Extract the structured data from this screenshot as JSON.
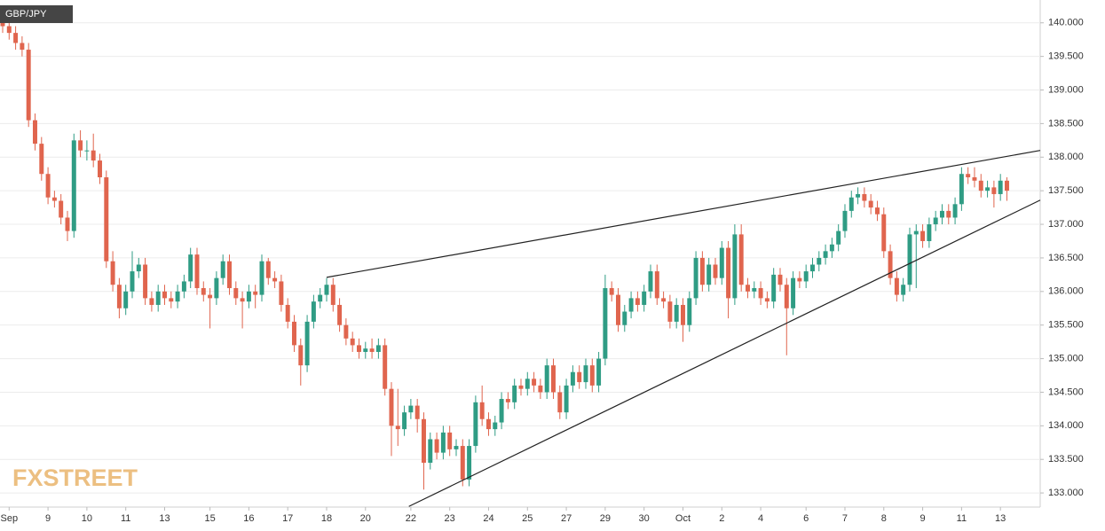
{
  "chart_data": {
    "type": "candlestick",
    "title": "GBP/JPY",
    "watermark": "FXSTREET",
    "up_color": "#2f9c84",
    "down_color": "#e0654e",
    "grid": true,
    "xlim": [
      -0.41,
      160.14
    ],
    "ylim": [
      132.79,
      140.34
    ],
    "yticks": [
      {
        "value": 133,
        "label": "133.000"
      },
      {
        "value": 133.5,
        "label": "133.500"
      },
      {
        "value": 134,
        "label": "134.000"
      },
      {
        "value": 134.5,
        "label": "134.500"
      },
      {
        "value": 135,
        "label": "135.000"
      },
      {
        "value": 135.5,
        "label": "135.500"
      },
      {
        "value": 136,
        "label": "136.000"
      },
      {
        "value": 136.5,
        "label": "136.500"
      },
      {
        "value": 137,
        "label": "137.000"
      },
      {
        "value": 137.5,
        "label": "137.500"
      },
      {
        "value": 138,
        "label": "138.000"
      },
      {
        "value": 138.5,
        "label": "138.500"
      },
      {
        "value": 139,
        "label": "139.000"
      },
      {
        "value": 139.5,
        "label": "139.500"
      },
      {
        "value": 140,
        "label": "140.000"
      }
    ],
    "categories": [
      null,
      "Sep",
      null,
      null,
      null,
      null,
      null,
      "9",
      null,
      null,
      null,
      null,
      null,
      "10",
      null,
      null,
      null,
      null,
      null,
      "11",
      null,
      null,
      null,
      null,
      null,
      "13",
      null,
      null,
      null,
      null,
      null,
      null,
      "15",
      null,
      null,
      null,
      null,
      null,
      "16",
      null,
      null,
      null,
      null,
      null,
      "17",
      null,
      null,
      null,
      null,
      null,
      "18",
      null,
      null,
      null,
      null,
      null,
      "20",
      null,
      null,
      null,
      null,
      null,
      null,
      "22",
      null,
      null,
      null,
      null,
      null,
      "23",
      null,
      null,
      null,
      null,
      null,
      "24",
      null,
      null,
      null,
      null,
      null,
      "25",
      null,
      null,
      null,
      null,
      null,
      "27",
      null,
      null,
      null,
      null,
      null,
      "29",
      null,
      null,
      null,
      null,
      null,
      "30",
      null,
      null,
      null,
      null,
      null,
      "Oct",
      null,
      null,
      null,
      null,
      null,
      "2",
      null,
      null,
      null,
      null,
      null,
      "4",
      null,
      null,
      null,
      null,
      null,
      null,
      "6",
      null,
      null,
      null,
      null,
      null,
      "7",
      null,
      null,
      null,
      null,
      null,
      "8",
      null,
      null,
      null,
      null,
      null,
      "9",
      null,
      null,
      null,
      null,
      null,
      "11",
      null,
      null,
      null,
      null,
      null,
      "13",
      null
    ],
    "open": [
      140.05,
      139.95,
      139.85,
      139.7,
      139.6,
      138.55,
      138.2,
      137.75,
      137.4,
      137.35,
      137.1,
      136.9,
      138.25,
      138.1,
      138.1,
      137.95,
      137.7,
      136.45,
      136.1,
      135.75,
      136.0,
      136.3,
      136.4,
      135.9,
      135.8,
      136.0,
      135.9,
      135.85,
      136.0,
      136.15,
      136.55,
      136.05,
      135.95,
      135.9,
      136.2,
      136.45,
      136.05,
      135.9,
      135.85,
      136.0,
      135.95,
      136.45,
      136.2,
      136.15,
      135.8,
      135.55,
      135.2,
      134.9,
      135.55,
      135.85,
      135.95,
      136.1,
      135.8,
      135.5,
      135.3,
      135.2,
      135.1,
      135.15,
      135.1,
      135.2,
      134.55,
      134.0,
      133.95,
      134.2,
      134.3,
      134.1,
      133.45,
      133.8,
      133.6,
      133.9,
      133.65,
      133.7,
      133.2,
      133.7,
      134.35,
      134.1,
      133.95,
      134.05,
      134.4,
      134.35,
      134.6,
      134.55,
      134.7,
      134.6,
      134.5,
      134.9,
      134.5,
      134.2,
      134.6,
      134.8,
      134.65,
      134.9,
      134.6,
      135.0,
      136.05,
      135.95,
      135.5,
      135.7,
      135.9,
      135.8,
      136.0,
      136.3,
      135.9,
      135.85,
      135.55,
      135.8,
      135.5,
      135.9,
      136.5,
      136.1,
      136.4,
      136.2,
      136.65,
      135.9,
      136.85,
      136.1,
      136.0,
      136.05,
      135.9,
      135.85,
      136.25,
      136.1,
      135.75,
      136.2,
      136.15,
      136.3,
      136.4,
      136.5,
      136.6,
      136.7,
      136.9,
      137.2,
      137.4,
      137.45,
      137.35,
      137.25,
      137.15,
      136.6,
      136.2,
      135.95,
      136.1,
      136.85,
      136.9,
      136.75,
      137.0,
      137.1,
      137.2,
      137.1,
      137.3,
      137.75,
      137.7,
      137.65,
      137.5,
      137.55,
      137.45,
      137.65
    ],
    "high": [
      140.15,
      140.05,
      139.95,
      139.8,
      139.7,
      138.65,
      138.3,
      137.85,
      137.5,
      137.45,
      137.2,
      138.35,
      138.4,
      138.25,
      138.35,
      138.05,
      137.8,
      136.6,
      136.2,
      136.1,
      136.6,
      136.5,
      136.5,
      136.0,
      136.1,
      136.1,
      136.0,
      136.1,
      136.25,
      136.65,
      136.65,
      136.15,
      136.05,
      136.3,
      136.55,
      136.55,
      136.15,
      136.0,
      136.1,
      136.1,
      136.55,
      136.5,
      136.3,
      136.25,
      135.9,
      135.65,
      135.3,
      135.65,
      135.95,
      136.05,
      136.2,
      136.2,
      135.9,
      135.6,
      135.4,
      135.3,
      135.25,
      135.3,
      135.3,
      135.3,
      134.65,
      134.55,
      134.3,
      134.4,
      134.4,
      134.2,
      133.9,
      133.9,
      134.0,
      134.0,
      133.8,
      133.8,
      133.8,
      134.45,
      134.6,
      134.2,
      134.15,
      134.5,
      134.5,
      134.7,
      134.7,
      134.8,
      134.8,
      134.7,
      135.0,
      135.0,
      134.6,
      134.7,
      134.9,
      134.9,
      135.0,
      135.0,
      135.1,
      136.25,
      136.15,
      136.05,
      135.8,
      136.0,
      136.0,
      136.1,
      136.4,
      136.4,
      136.0,
      135.95,
      135.9,
      135.9,
      136.0,
      136.6,
      136.6,
      136.5,
      136.5,
      136.75,
      136.75,
      137.0,
      137.0,
      136.2,
      136.15,
      136.15,
      136.0,
      136.35,
      136.35,
      136.2,
      136.3,
      136.3,
      136.4,
      136.5,
      136.6,
      136.7,
      136.8,
      137.0,
      137.3,
      137.5,
      137.55,
      137.55,
      137.45,
      137.35,
      137.25,
      136.7,
      136.3,
      136.2,
      136.95,
      137.0,
      137.0,
      137.1,
      137.2,
      137.3,
      137.3,
      137.4,
      137.85,
      137.85,
      137.85,
      137.75,
      137.65,
      137.65,
      137.75,
      137.7
    ],
    "low": [
      139.85,
      139.75,
      139.6,
      139.5,
      138.45,
      138.1,
      137.65,
      137.3,
      137.25,
      137.0,
      136.75,
      136.8,
      138.0,
      137.95,
      137.85,
      137.6,
      136.35,
      136.0,
      135.6,
      135.65,
      135.9,
      136.2,
      135.8,
      135.7,
      135.7,
      135.8,
      135.75,
      135.75,
      135.9,
      136.05,
      135.95,
      135.85,
      135.45,
      135.8,
      136.1,
      135.95,
      135.8,
      135.45,
      135.75,
      135.75,
      135.85,
      136.1,
      136.05,
      135.7,
      135.45,
      135.1,
      134.6,
      134.8,
      135.45,
      135.75,
      135.85,
      135.7,
      135.4,
      135.2,
      135.1,
      135.0,
      135.0,
      135.0,
      135.0,
      134.45,
      133.55,
      133.7,
      133.85,
      134.1,
      133.9,
      133.05,
      133.35,
      133.5,
      133.5,
      133.55,
      133.55,
      133.1,
      133.1,
      133.6,
      134.0,
      133.85,
      133.85,
      133.95,
      134.25,
      134.25,
      134.45,
      134.45,
      134.5,
      134.4,
      134.4,
      134.4,
      134.1,
      134.1,
      134.5,
      134.55,
      134.55,
      134.5,
      134.5,
      134.9,
      135.85,
      135.4,
      135.4,
      135.6,
      135.7,
      135.7,
      135.9,
      135.8,
      135.75,
      135.45,
      135.45,
      135.25,
      135.4,
      135.8,
      136.0,
      136.0,
      136.1,
      136.1,
      135.6,
      135.8,
      136.0,
      135.9,
      135.9,
      135.8,
      135.75,
      135.75,
      136.0,
      135.05,
      135.65,
      136.05,
      136.05,
      136.2,
      136.3,
      136.4,
      136.5,
      136.6,
      136.8,
      137.1,
      137.3,
      137.25,
      137.15,
      137.05,
      136.5,
      136.1,
      135.85,
      135.85,
      136.0,
      136.05,
      136.65,
      136.65,
      136.9,
      137.0,
      137.0,
      137.0,
      137.2,
      137.6,
      137.55,
      137.4,
      137.4,
      137.25,
      137.35,
      137.35
    ],
    "close": [
      139.95,
      139.85,
      139.7,
      139.6,
      138.55,
      138.2,
      137.75,
      137.4,
      137.35,
      137.1,
      136.9,
      138.25,
      138.1,
      138.1,
      137.95,
      137.7,
      136.45,
      136.1,
      135.75,
      136.0,
      136.3,
      136.4,
      135.9,
      135.8,
      136.0,
      135.9,
      135.85,
      136.0,
      136.15,
      136.55,
      136.05,
      135.95,
      135.9,
      136.2,
      136.45,
      136.05,
      135.9,
      135.85,
      136.0,
      135.95,
      136.45,
      136.2,
      136.15,
      135.8,
      135.55,
      135.2,
      134.9,
      135.55,
      135.85,
      135.95,
      136.1,
      135.8,
      135.5,
      135.3,
      135.2,
      135.1,
      135.15,
      135.1,
      135.2,
      134.55,
      134.0,
      133.95,
      134.2,
      134.3,
      134.1,
      133.45,
      133.8,
      133.6,
      133.9,
      133.65,
      133.7,
      133.2,
      133.7,
      134.35,
      134.1,
      133.95,
      134.05,
      134.4,
      134.35,
      134.6,
      134.55,
      134.7,
      134.6,
      134.5,
      134.9,
      134.5,
      134.2,
      134.6,
      134.8,
      134.65,
      134.9,
      134.6,
      135.0,
      136.05,
      135.95,
      135.5,
      135.7,
      135.9,
      135.8,
      136.0,
      136.3,
      135.9,
      135.85,
      135.55,
      135.8,
      135.5,
      135.9,
      136.5,
      136.1,
      136.4,
      136.2,
      136.65,
      135.9,
      136.85,
      136.1,
      136.0,
      136.05,
      135.9,
      135.85,
      136.25,
      136.1,
      135.75,
      136.2,
      136.15,
      136.3,
      136.4,
      136.5,
      136.6,
      136.7,
      136.9,
      137.2,
      137.4,
      137.45,
      137.35,
      137.25,
      137.15,
      136.6,
      136.2,
      135.95,
      136.1,
      136.85,
      136.9,
      136.75,
      137.0,
      137.1,
      137.2,
      137.1,
      137.3,
      137.75,
      137.7,
      137.65,
      137.5,
      137.55,
      137.45,
      137.65,
      137.5
    ],
    "trendlines": [
      {
        "start": [
          50,
          136.21
        ],
        "end": [
          160.14,
          138.1
        ]
      },
      {
        "start": [
          62.7,
          132.8
        ],
        "end": [
          160.14,
          137.36
        ]
      }
    ]
  }
}
